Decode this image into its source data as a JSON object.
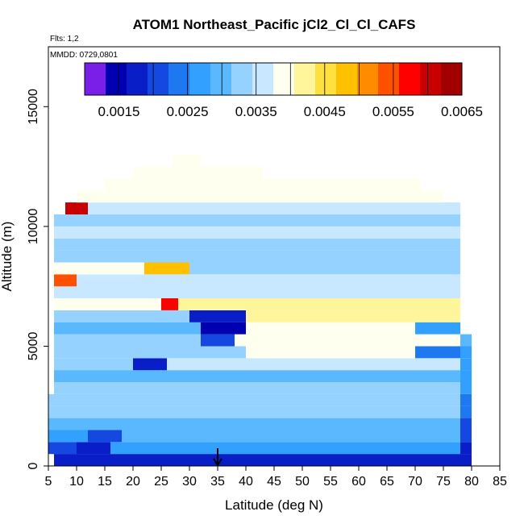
{
  "chart_data": {
    "type": "heatmap",
    "title": "ATOM1 Northeast_Pacific jCl2_Cl_Cl_CAFS",
    "flights_note": "Flts: 1,2",
    "date_note": "MMDD: 0729,0801",
    "xlabel": "Latitude (deg N)",
    "ylabel": "Altitude (m)",
    "xlim": [
      5,
      85
    ],
    "ylim": [
      0,
      17500
    ],
    "x_ticks": [
      5,
      10,
      15,
      20,
      25,
      30,
      35,
      40,
      45,
      50,
      55,
      60,
      65,
      70,
      75,
      80,
      85
    ],
    "y_ticks": [
      0,
      5000,
      10000,
      15000
    ],
    "arrow_marker_latitude": 35,
    "colorbar": {
      "min": 0.001,
      "max": 0.0065,
      "labels": [
        "0.0015",
        "0.0025",
        "0.0035",
        "0.0045",
        "0.0055",
        "0.0065"
      ],
      "label_values": [
        0.0015,
        0.0025,
        0.0035,
        0.0045,
        0.0055,
        0.0065
      ],
      "colors": [
        "#7a1fe8",
        "#0000b0",
        "#0a1ec8",
        "#1448e0",
        "#1e78f0",
        "#32a0ff",
        "#5ab8ff",
        "#96d2ff",
        "#c8e8ff",
        "#fffff0",
        "#fff59a",
        "#ffe040",
        "#ffc000",
        "#ff8c00",
        "#ff5000",
        "#ff0000",
        "#c80000",
        "#a00000"
      ]
    },
    "band_height_m": 500,
    "profile_rows": [
      {
        "alt": 250,
        "values": [
          [
            6,
            80,
            0.0017
          ]
        ]
      },
      {
        "alt": 750,
        "values": [
          [
            5,
            10,
            0.0022
          ],
          [
            10,
            16,
            0.0018
          ],
          [
            16,
            78,
            0.0026
          ],
          [
            78,
            80,
            0.0018
          ]
        ]
      },
      {
        "alt": 1250,
        "values": [
          [
            5,
            12,
            0.0027
          ],
          [
            12,
            18,
            0.0021
          ],
          [
            18,
            78,
            0.0029
          ],
          [
            78,
            80,
            0.0021
          ]
        ]
      },
      {
        "alt": 1750,
        "values": [
          [
            5,
            15,
            0.003
          ],
          [
            15,
            78,
            0.0031
          ],
          [
            78,
            80,
            0.0022
          ]
        ]
      },
      {
        "alt": 2250,
        "values": [
          [
            5,
            78,
            0.0032
          ],
          [
            78,
            80,
            0.0023
          ]
        ]
      },
      {
        "alt": 2750,
        "values": [
          [
            5,
            78,
            0.0034
          ],
          [
            78,
            80,
            0.0024
          ]
        ]
      },
      {
        "alt": 3250,
        "values": [
          [
            6,
            78,
            0.0033
          ],
          [
            78,
            80,
            0.0026
          ]
        ]
      },
      {
        "alt": 3750,
        "values": [
          [
            6,
            78,
            0.0031
          ],
          [
            78,
            80,
            0.0026
          ]
        ]
      },
      {
        "alt": 4250,
        "values": [
          [
            6,
            20,
            0.0033
          ],
          [
            20,
            26,
            0.0018
          ],
          [
            26,
            78,
            0.0036
          ],
          [
            78,
            80,
            0.0027
          ]
        ]
      },
      {
        "alt": 4750,
        "values": [
          [
            6,
            40,
            0.0034
          ],
          [
            40,
            70,
            0.004
          ],
          [
            70,
            78,
            0.0024
          ],
          [
            78,
            80,
            0.0028
          ]
        ]
      },
      {
        "alt": 5250,
        "values": [
          [
            6,
            32,
            0.0032
          ],
          [
            32,
            38,
            0.0021
          ],
          [
            38,
            78,
            0.0038
          ],
          [
            78,
            80,
            0.003
          ]
        ]
      },
      {
        "alt": 5750,
        "values": [
          [
            6,
            32,
            0.0031
          ],
          [
            32,
            40,
            0.0016
          ],
          [
            40,
            70,
            0.0039
          ],
          [
            70,
            78,
            0.0026
          ]
        ]
      },
      {
        "alt": 6250,
        "values": [
          [
            6,
            30,
            0.0033
          ],
          [
            30,
            40,
            0.0017
          ],
          [
            40,
            78,
            0.0041
          ]
        ]
      },
      {
        "alt": 6750,
        "values": [
          [
            6,
            25,
            0.0038
          ],
          [
            25,
            28,
            0.0058
          ],
          [
            28,
            78,
            0.0041
          ]
        ]
      },
      {
        "alt": 7250,
        "values": [
          [
            6,
            78,
            0.0035
          ]
        ]
      },
      {
        "alt": 7750,
        "values": [
          [
            6,
            10,
            0.0054
          ],
          [
            10,
            78,
            0.0037
          ]
        ]
      },
      {
        "alt": 8250,
        "values": [
          [
            6,
            22,
            0.0039
          ],
          [
            22,
            30,
            0.0049
          ],
          [
            30,
            78,
            0.0034
          ]
        ]
      },
      {
        "alt": 8750,
        "values": [
          [
            6,
            78,
            0.0033
          ]
        ]
      },
      {
        "alt": 9250,
        "values": [
          [
            6,
            78,
            0.0034
          ]
        ]
      },
      {
        "alt": 9750,
        "values": [
          [
            6,
            78,
            0.0036
          ]
        ]
      },
      {
        "alt": 10250,
        "values": [
          [
            6,
            78,
            0.0033
          ]
        ]
      },
      {
        "alt": 10750,
        "values": [
          [
            8,
            12,
            0.006
          ],
          [
            12,
            78,
            0.0035
          ]
        ]
      },
      {
        "alt": 11250,
        "values": [
          [
            10,
            75,
            0.0038
          ]
        ]
      },
      {
        "alt": 11750,
        "values": [
          [
            15,
            71,
            0.0039
          ]
        ]
      },
      {
        "alt": 12250,
        "values": [
          [
            20,
            43,
            0.004
          ]
        ]
      },
      {
        "alt": 12750,
        "values": [
          [
            27,
            32,
            0.0039
          ]
        ]
      }
    ]
  }
}
